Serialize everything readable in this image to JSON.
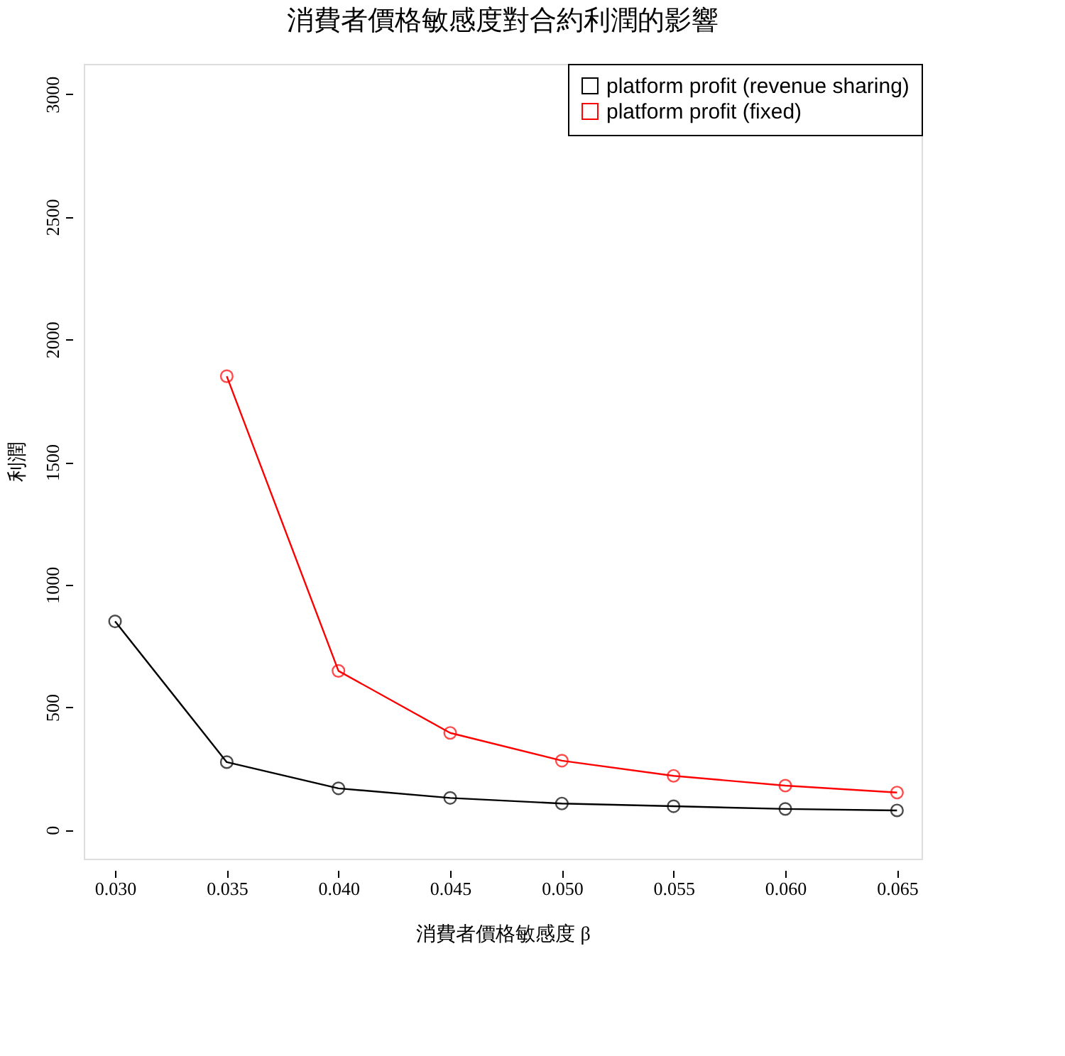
{
  "chart_data": {
    "type": "line",
    "title": "消費者價格敏感度對合約利潤的影響",
    "xlabel": "消費者價格敏感度 β",
    "ylabel": "利潤",
    "x": [
      0.03,
      0.035,
      0.04,
      0.045,
      0.05,
      0.055,
      0.06,
      0.065
    ],
    "series": [
      {
        "name": "platform profit (revenue sharing)",
        "color": "#000000",
        "values": [
          850,
          276,
          169,
          130,
          107,
          96,
          85,
          79
        ]
      },
      {
        "name": "platform profit (fixed)",
        "color": "#ff0000",
        "values": [
          null,
          1850,
          648,
          395,
          282,
          220,
          180,
          152
        ]
      }
    ],
    "xlim": [
      0.0286,
      0.0661
    ],
    "ylim": [
      -118,
      3124
    ],
    "xticks": [
      {
        "value": 0.03,
        "label": "0.030"
      },
      {
        "value": 0.035,
        "label": "0.035"
      },
      {
        "value": 0.04,
        "label": "0.040"
      },
      {
        "value": 0.045,
        "label": "0.045"
      },
      {
        "value": 0.05,
        "label": "0.050"
      },
      {
        "value": 0.055,
        "label": "0.055"
      },
      {
        "value": 0.06,
        "label": "0.060"
      },
      {
        "value": 0.065,
        "label": "0.065"
      }
    ],
    "yticks": [
      0,
      500,
      1000,
      1500,
      2000,
      2500,
      3000
    ],
    "grid": false,
    "legend": "top right",
    "marker": "circle",
    "line_style": "solid"
  }
}
